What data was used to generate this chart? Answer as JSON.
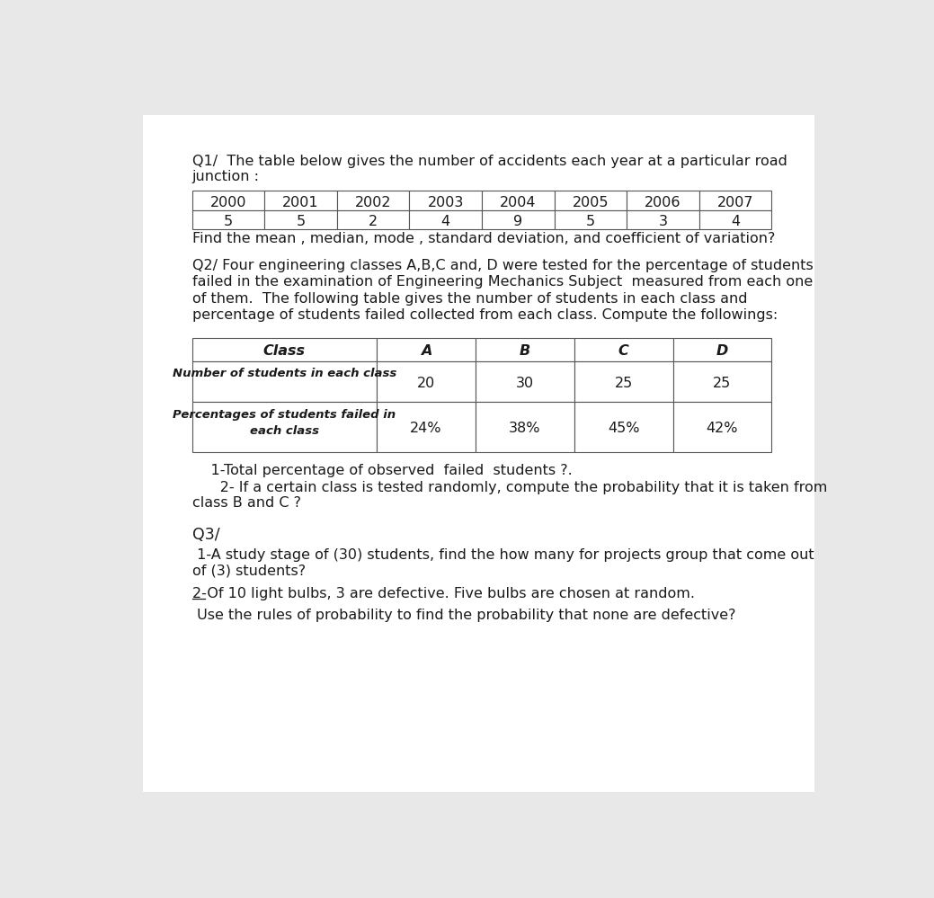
{
  "bg_color": "#e8e8e8",
  "page_bg": "#ffffff",
  "text_color": "#1a1a1a",
  "font_size_body": 11.5,
  "q1_title_line1": "Q1/  The table below gives the number of accidents each year at a particular road",
  "q1_title_line2": "junction :",
  "q1_years": [
    "2000",
    "2001",
    "2002",
    "2003",
    "2004",
    "2005",
    "2006",
    "2007"
  ],
  "q1_values": [
    "5",
    "5",
    "2",
    "4",
    "9",
    "5",
    "3",
    "4"
  ],
  "q1_footer": "Find the mean , median, mode , standard deviation, and coefficient of variation?",
  "q2_title_line1": "Q2/ Four engineering classes A,B,C and, D were tested for the percentage of students",
  "q2_title_line2": "failed in the examination of Engineering Mechanics Subject  measured from each one",
  "q2_title_line3": "of them.  The following table gives the number of students in each class and",
  "q2_title_line4": "percentage of students failed collected from each class. Compute the followings:",
  "q2_row0": [
    "Class",
    "A",
    "B",
    "C",
    "D"
  ],
  "q2_row1_label": "Number of students in each class",
  "q2_row1_values": [
    "20",
    "30",
    "25",
    "25"
  ],
  "q2_row2_label1": "Percentages of students failed in",
  "q2_row2_label2": "each class",
  "q2_row2_values": [
    "24%",
    "38%",
    "45%",
    "42%"
  ],
  "q2_sub1": "    1-Total percentage of observed  failed  students ?.",
  "q2_sub2a": "      2- If a certain class is tested randomly, compute the probability that it is taken from",
  "q2_sub2b": "class B and C ?",
  "q3_title": "Q3/",
  "q3_sub1a": " 1-A study stage of (30) students, find the how many for projects group that come out",
  "q3_sub1b": "of (3) students?",
  "q3_sub2_line1": "2-Of 10 light bulbs, 3 are defective. Five bulbs are chosen at random.",
  "q3_sub2_line2": " Use the rules of probability to find the probability that none are defective?"
}
